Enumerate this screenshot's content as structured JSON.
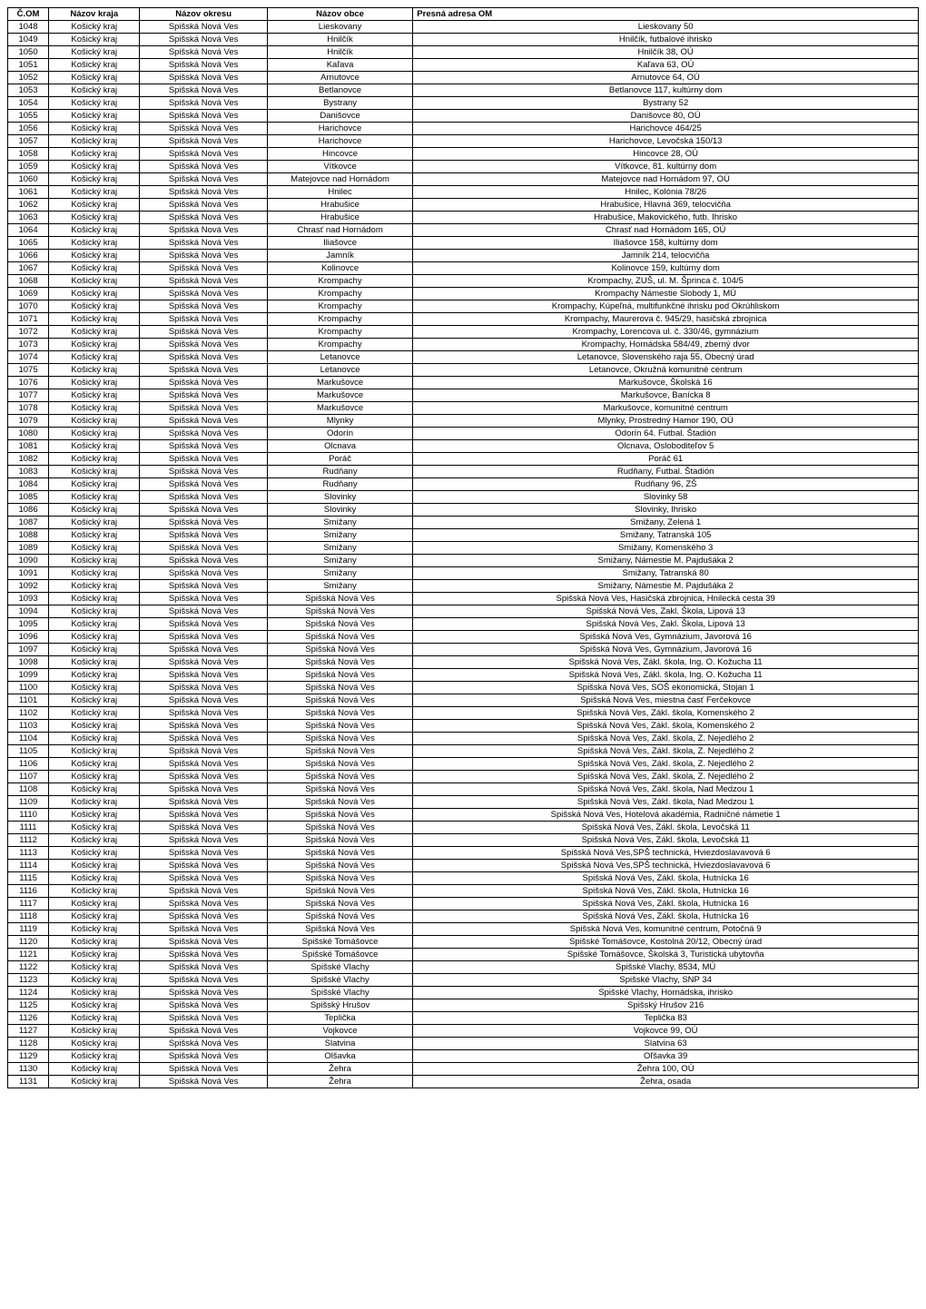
{
  "headers": {
    "com": "Č.OM",
    "kraj": "Názov kraja",
    "okres": "Názov okresu",
    "obec": "Názov obce",
    "addr": "Presná adresa OM"
  },
  "rows": [
    {
      "com": "1048",
      "kraj": "Košický kraj",
      "okres": "Spišská Nová Ves",
      "obec": "Lieskovany",
      "addr": "Lieskovany 50"
    },
    {
      "com": "1049",
      "kraj": "Košický kraj",
      "okres": "Spišská Nová Ves",
      "obec": "Hnilčík",
      "addr": "Hnilčík, futbalové ihrisko"
    },
    {
      "com": "1050",
      "kraj": "Košický kraj",
      "okres": "Spišská Nová Ves",
      "obec": "Hnilčík",
      "addr": "Hnilčík 38, OÚ"
    },
    {
      "com": "1051",
      "kraj": "Košický kraj",
      "okres": "Spišská Nová Ves",
      "obec": "Kaľava",
      "addr": "Kaľava 63, OÚ"
    },
    {
      "com": "1052",
      "kraj": "Košický kraj",
      "okres": "Spišská Nová Ves",
      "obec": "Arnutovce",
      "addr": "Arnutovce 64, OÚ"
    },
    {
      "com": "1053",
      "kraj": "Košický kraj",
      "okres": "Spišská Nová Ves",
      "obec": "Betlanovce",
      "addr": "Betlanovce 117, kultúrny dom"
    },
    {
      "com": "1054",
      "kraj": "Košický kraj",
      "okres": "Spišská Nová Ves",
      "obec": "Bystrany",
      "addr": "Bystrany 52"
    },
    {
      "com": "1055",
      "kraj": "Košický kraj",
      "okres": "Spišská Nová Ves",
      "obec": "Danišovce",
      "addr": "Danišovce 80, OÚ"
    },
    {
      "com": "1056",
      "kraj": "Košický kraj",
      "okres": "Spišská Nová Ves",
      "obec": "Harichovce",
      "addr": "Harichovce 464/25"
    },
    {
      "com": "1057",
      "kraj": "Košický kraj",
      "okres": "Spišská Nová Ves",
      "obec": "Harichovce",
      "addr": "Harichovce, Levočská 150/13"
    },
    {
      "com": "1058",
      "kraj": "Košický kraj",
      "okres": "Spišská Nová Ves",
      "obec": "Hincovce",
      "addr": "Hincovce 28, OÚ"
    },
    {
      "com": "1059",
      "kraj": "Košický kraj",
      "okres": "Spišská Nová Ves",
      "obec": "Vítkovce",
      "addr": "Vítkovce, 81. kultúrny dom"
    },
    {
      "com": "1060",
      "kraj": "Košický kraj",
      "okres": "Spišská Nová Ves",
      "obec": "Matejovce nad Hornádom",
      "addr": "Matejovce nad Hornádom 97, OÚ"
    },
    {
      "com": "1061",
      "kraj": "Košický kraj",
      "okres": "Spišská Nová Ves",
      "obec": "Hnilec",
      "addr": "Hnilec, Kolónia 78/26"
    },
    {
      "com": "1062",
      "kraj": "Košický kraj",
      "okres": "Spišská Nová Ves",
      "obec": "Hrabušice",
      "addr": "Hrabušice, Hlavná 369, telocvičňa"
    },
    {
      "com": "1063",
      "kraj": "Košický kraj",
      "okres": "Spišská Nová Ves",
      "obec": "Hrabušice",
      "addr": "Hrabušice, Makovického, futb. Ihrisko"
    },
    {
      "com": "1064",
      "kraj": "Košický kraj",
      "okres": "Spišská Nová Ves",
      "obec": "Chrasť nad Hornádom",
      "addr": "Chrasť nad Hornádom 165, OÚ"
    },
    {
      "com": "1065",
      "kraj": "Košický kraj",
      "okres": "Spišská Nová Ves",
      "obec": "Iliašovce",
      "addr": "Iliašovce 158, kultúrny dom"
    },
    {
      "com": "1066",
      "kraj": "Košický kraj",
      "okres": "Spišská Nová Ves",
      "obec": "Jamník",
      "addr": "Jamník 214, telocvičňa"
    },
    {
      "com": "1067",
      "kraj": "Košický kraj",
      "okres": "Spišská Nová Ves",
      "obec": "Kolinovce",
      "addr": "Kolinovce 159, kultúrny dom"
    },
    {
      "com": "1068",
      "kraj": "Košický kraj",
      "okres": "Spišská Nová Ves",
      "obec": "Krompachy",
      "addr": "Krompachy, ZUŠ, ul. M. Šprinca č. 104/5"
    },
    {
      "com": "1069",
      "kraj": "Košický kraj",
      "okres": "Spišská Nová Ves",
      "obec": "Krompachy",
      "addr": "Krompachy Námestie Slobody 1, MÚ"
    },
    {
      "com": "1070",
      "kraj": "Košický kraj",
      "okres": "Spišská Nová Ves",
      "obec": "Krompachy",
      "addr": "Krompachy, Kúpeľná, multifunkčné ihrisku pod Okrúhliskom"
    },
    {
      "com": "1071",
      "kraj": "Košický kraj",
      "okres": "Spišská Nová Ves",
      "obec": "Krompachy",
      "addr": "Krompachy, Maurerova č. 945/29, hasičská zbrojnica"
    },
    {
      "com": "1072",
      "kraj": "Košický kraj",
      "okres": "Spišská Nová Ves",
      "obec": "Krompachy",
      "addr": "Krompachy, Lorencova ul. č. 330/46, gymnázium"
    },
    {
      "com": "1073",
      "kraj": "Košický kraj",
      "okres": "Spišská Nová Ves",
      "obec": "Krompachy",
      "addr": "Krompachy, Hornádska 584/49, zberný dvor"
    },
    {
      "com": "1074",
      "kraj": "Košický kraj",
      "okres": "Spišská Nová Ves",
      "obec": "Letanovce",
      "addr": "Letanovce, Slovenského raja 55, Obecný úrad"
    },
    {
      "com": "1075",
      "kraj": "Košický kraj",
      "okres": "Spišská Nová Ves",
      "obec": "Letanovce",
      "addr": "Letanovce, Okružná komunitné centrum"
    },
    {
      "com": "1076",
      "kraj": "Košický kraj",
      "okres": "Spišská Nová Ves",
      "obec": "Markušovce",
      "addr": "Markušovce, Školská 16"
    },
    {
      "com": "1077",
      "kraj": "Košický kraj",
      "okres": "Spišská Nová Ves",
      "obec": "Markušovce",
      "addr": "Markušovce, Banícka 8"
    },
    {
      "com": "1078",
      "kraj": "Košický kraj",
      "okres": "Spišská Nová Ves",
      "obec": "Markušovce",
      "addr": "Markušovce, komunitné centrum"
    },
    {
      "com": "1079",
      "kraj": "Košický kraj",
      "okres": "Spišská Nová Ves",
      "obec": "Mlynky",
      "addr": "Mlynky, Prostredný Hamor 190, OÚ"
    },
    {
      "com": "1080",
      "kraj": "Košický kraj",
      "okres": "Spišská Nová Ves",
      "obec": "Odorín",
      "addr": "Odorín 64. Futbal. Štadión"
    },
    {
      "com": "1081",
      "kraj": "Košický kraj",
      "okres": "Spišská Nová Ves",
      "obec": "Olcnava",
      "addr": "Olcnava, Osloboditeľov 5"
    },
    {
      "com": "1082",
      "kraj": "Košický kraj",
      "okres": "Spišská Nová Ves",
      "obec": "Poráč",
      "addr": "Poráč 61"
    },
    {
      "com": "1083",
      "kraj": "Košický kraj",
      "okres": "Spišská Nová Ves",
      "obec": "Rudňany",
      "addr": "Rudňany, Futbal. Štadión"
    },
    {
      "com": "1084",
      "kraj": "Košický kraj",
      "okres": "Spišská Nová Ves",
      "obec": "Rudňany",
      "addr": "Rudňany 96, ZŠ"
    },
    {
      "com": "1085",
      "kraj": "Košický kraj",
      "okres": "Spišská Nová Ves",
      "obec": "Slovinky",
      "addr": "Slovinky 58"
    },
    {
      "com": "1086",
      "kraj": "Košický kraj",
      "okres": "Spišská Nová Ves",
      "obec": "Slovinky",
      "addr": "Slovinky, Ihrisko"
    },
    {
      "com": "1087",
      "kraj": "Košický kraj",
      "okres": "Spišská Nová Ves",
      "obec": "Smižany",
      "addr": "Smižany, Zelená 1"
    },
    {
      "com": "1088",
      "kraj": "Košický kraj",
      "okres": "Spišská Nová Ves",
      "obec": "Smižany",
      "addr": "Smižany, Tatranská 105"
    },
    {
      "com": "1089",
      "kraj": "Košický kraj",
      "okres": "Spišská Nová Ves",
      "obec": "Smižany",
      "addr": "Smižany, Komenského 3"
    },
    {
      "com": "1090",
      "kraj": "Košický kraj",
      "okres": "Spišská Nová Ves",
      "obec": "Smižany",
      "addr": "Smižany, Námestie M. Pajdušáka 2"
    },
    {
      "com": "1091",
      "kraj": "Košický kraj",
      "okres": "Spišská Nová Ves",
      "obec": "Smižany",
      "addr": "Smižany, Tatranská 80"
    },
    {
      "com": "1092",
      "kraj": "Košický kraj",
      "okres": "Spišská Nová Ves",
      "obec": "Smižany",
      "addr": "Smižany, Námestie M. Pajdušáka 2"
    },
    {
      "com": "1093",
      "kraj": "Košický kraj",
      "okres": "Spišská Nová Ves",
      "obec": "Spišská Nová Ves",
      "addr": "Spišská Nová Ves, Hasičská zbrojnica, Hnilecká cesta 39"
    },
    {
      "com": "1094",
      "kraj": "Košický kraj",
      "okres": "Spišská Nová Ves",
      "obec": "Spišská Nová Ves",
      "addr": "Spišská Nová Ves, Zakl. Škola, Lipová 13"
    },
    {
      "com": "1095",
      "kraj": "Košický kraj",
      "okres": "Spišská Nová Ves",
      "obec": "Spišská Nová Ves",
      "addr": "Spišská Nová Ves, Zakl. Škola, Lipová 13"
    },
    {
      "com": "1096",
      "kraj": "Košický kraj",
      "okres": "Spišská Nová Ves",
      "obec": "Spišská Nová Ves",
      "addr": "Spišská Nová Ves, Gymnázium, Javorová 16"
    },
    {
      "com": "1097",
      "kraj": "Košický kraj",
      "okres": "Spišská Nová Ves",
      "obec": "Spišská Nová Ves",
      "addr": "Spišská Nová Ves, Gymnázium, Javorová 16"
    },
    {
      "com": "1098",
      "kraj": "Košický kraj",
      "okres": "Spišská Nová Ves",
      "obec": "Spišská Nová Ves",
      "addr": "Spišská Nová Ves, Zákl. škola, Ing. O. Kožucha 11"
    },
    {
      "com": "1099",
      "kraj": "Košický kraj",
      "okres": "Spišská Nová Ves",
      "obec": "Spišská Nová Ves",
      "addr": "Spišská Nová Ves, Zákl. škola, Ing. O. Kožucha 11"
    },
    {
      "com": "1100",
      "kraj": "Košický kraj",
      "okres": "Spišská Nová Ves",
      "obec": "Spišská Nová Ves",
      "addr": "Spišská Nová Ves, SOŠ ekonomická, Stojan 1"
    },
    {
      "com": "1101",
      "kraj": "Košický kraj",
      "okres": "Spišská Nová Ves",
      "obec": "Spišská Nová Ves",
      "addr": "Spišská Nová Ves, miestna časť Ferčekovce"
    },
    {
      "com": "1102",
      "kraj": "Košický kraj",
      "okres": "Spišská Nová Ves",
      "obec": "Spišská Nová Ves",
      "addr": "Spišská Nová Ves, Zákl. škola, Komenského 2"
    },
    {
      "com": "1103",
      "kraj": "Košický kraj",
      "okres": "Spišská Nová Ves",
      "obec": "Spišská Nová Ves",
      "addr": "Spišská Nová Ves, Zákl. škola, Komenského 2"
    },
    {
      "com": "1104",
      "kraj": "Košický kraj",
      "okres": "Spišská Nová Ves",
      "obec": "Spišská Nová Ves",
      "addr": "Spišská Nová Ves, Zákl. škola, Z. Nejedlého 2"
    },
    {
      "com": "1105",
      "kraj": "Košický kraj",
      "okres": "Spišská Nová Ves",
      "obec": "Spišská Nová Ves",
      "addr": "Spišská Nová Ves, Zákl. škola, Z. Nejedlého 2"
    },
    {
      "com": "1106",
      "kraj": "Košický kraj",
      "okres": "Spišská Nová Ves",
      "obec": "Spišská Nová Ves",
      "addr": "Spišská Nová Ves, Zákl. škola, Z. Nejedlého 2"
    },
    {
      "com": "1107",
      "kraj": "Košický kraj",
      "okres": "Spišská Nová Ves",
      "obec": "Spišská Nová Ves",
      "addr": "Spišská Nová Ves, Zákl. škola, Z. Nejedlého 2"
    },
    {
      "com": "1108",
      "kraj": "Košický kraj",
      "okres": "Spišská Nová Ves",
      "obec": "Spišská Nová Ves",
      "addr": "Spišská Nová Ves, Zákl. škola, Nad Medzou 1"
    },
    {
      "com": "1109",
      "kraj": "Košický kraj",
      "okres": "Spišská Nová Ves",
      "obec": "Spišská Nová Ves",
      "addr": "Spišská Nová Ves, Zákl. škola, Nad Medzou 1"
    },
    {
      "com": "1110",
      "kraj": "Košický kraj",
      "okres": "Spišská Nová Ves",
      "obec": "Spišská Nová Ves",
      "addr": "Spišská Nová Ves, Hotelová akadémia, Radničné námetie 1"
    },
    {
      "com": "1111",
      "kraj": "Košický kraj",
      "okres": "Spišská Nová Ves",
      "obec": "Spišská Nová Ves",
      "addr": "Spišská Nová Ves, Zákl. škola, Levočská 11"
    },
    {
      "com": "1112",
      "kraj": "Košický kraj",
      "okres": "Spišská Nová Ves",
      "obec": "Spišská Nová Ves",
      "addr": "Spišská Nová Ves, Zákl. škola, Levočská 11"
    },
    {
      "com": "1113",
      "kraj": "Košický kraj",
      "okres": "Spišská Nová Ves",
      "obec": "Spišská Nová Ves",
      "addr": "Spišská Nová Ves,SPŠ technická, Hviezdoslavavová 6"
    },
    {
      "com": "1114",
      "kraj": "Košický kraj",
      "okres": "Spišská Nová Ves",
      "obec": "Spišská Nová Ves",
      "addr": "Spišská Nová Ves,SPŠ technická, Hviezdoslavavová 6"
    },
    {
      "com": "1115",
      "kraj": "Košický kraj",
      "okres": "Spišská Nová Ves",
      "obec": "Spišská Nová Ves",
      "addr": "Spišská Nová Ves, Zákl. škola, Hutnícka 16"
    },
    {
      "com": "1116",
      "kraj": "Košický kraj",
      "okres": "Spišská Nová Ves",
      "obec": "Spišská Nová Ves",
      "addr": "Spišská Nová Ves, Zákl. škola, Hutnícka 16"
    },
    {
      "com": "1117",
      "kraj": "Košický kraj",
      "okres": "Spišská Nová Ves",
      "obec": "Spišská Nová Ves",
      "addr": "Spišská Nová Ves, Zákl. škola, Hutnícka 16"
    },
    {
      "com": "1118",
      "kraj": "Košický kraj",
      "okres": "Spišská Nová Ves",
      "obec": "Spišská Nová Ves",
      "addr": "Spišská Nová Ves, Zákl. škola, Hutnícka 16"
    },
    {
      "com": "1119",
      "kraj": "Košický kraj",
      "okres": "Spišská Nová Ves",
      "obec": "Spišská Nová Ves",
      "addr": "Spišská Nová Ves, komunitné centrum, Potočná 9"
    },
    {
      "com": "1120",
      "kraj": "Košický kraj",
      "okres": "Spišská Nová Ves",
      "obec": "Spišské Tomášovce",
      "addr": "Spišské Tomášovce, Kostolná 20/12, Obecný úrad"
    },
    {
      "com": "1121",
      "kraj": "Košický kraj",
      "okres": "Spišská Nová Ves",
      "obec": "Spišské Tomášovce",
      "addr": "Spišské Tomášovce, Školská 3, Turistická ubytovňa"
    },
    {
      "com": "1122",
      "kraj": "Košický kraj",
      "okres": "Spišská Nová Ves",
      "obec": "Spišské Vlachy",
      "addr": "Spišské Vlachy, 8534, MÚ"
    },
    {
      "com": "1123",
      "kraj": "Košický kraj",
      "okres": "Spišská Nová Ves",
      "obec": "Spišské Vlachy",
      "addr": "Spišské Vlachy, SNP 34"
    },
    {
      "com": "1124",
      "kraj": "Košický kraj",
      "okres": "Spišská Nová Ves",
      "obec": "Spišské Vlachy",
      "addr": "Spišské Vlachy, Hornádska, ihrisko"
    },
    {
      "com": "1125",
      "kraj": "Košický kraj",
      "okres": "Spišská Nová Ves",
      "obec": "Spišský Hrušov",
      "addr": "Spišský Hrušov 216"
    },
    {
      "com": "1126",
      "kraj": "Košický kraj",
      "okres": "Spišská Nová Ves",
      "obec": "Teplička",
      "addr": "Teplička 83"
    },
    {
      "com": "1127",
      "kraj": "Košický kraj",
      "okres": "Spišská Nová Ves",
      "obec": "Vojkovce",
      "addr": "Vojkovce 99, OÚ"
    },
    {
      "com": "1128",
      "kraj": "Košický kraj",
      "okres": "Spišská Nová Ves",
      "obec": "Slatvina",
      "addr": "Slatvina 63"
    },
    {
      "com": "1129",
      "kraj": "Košický kraj",
      "okres": "Spišská Nová Ves",
      "obec": "Olšavka",
      "addr": "Oľšavka 39"
    },
    {
      "com": "1130",
      "kraj": "Košický kraj",
      "okres": "Spišská Nová Ves",
      "obec": "Žehra",
      "addr": "Žehra 100, OÚ"
    },
    {
      "com": "1131",
      "kraj": "Košický kraj",
      "okres": "Spišská Nová Ves",
      "obec": "Žehra",
      "addr": "Žehra, osada"
    }
  ]
}
